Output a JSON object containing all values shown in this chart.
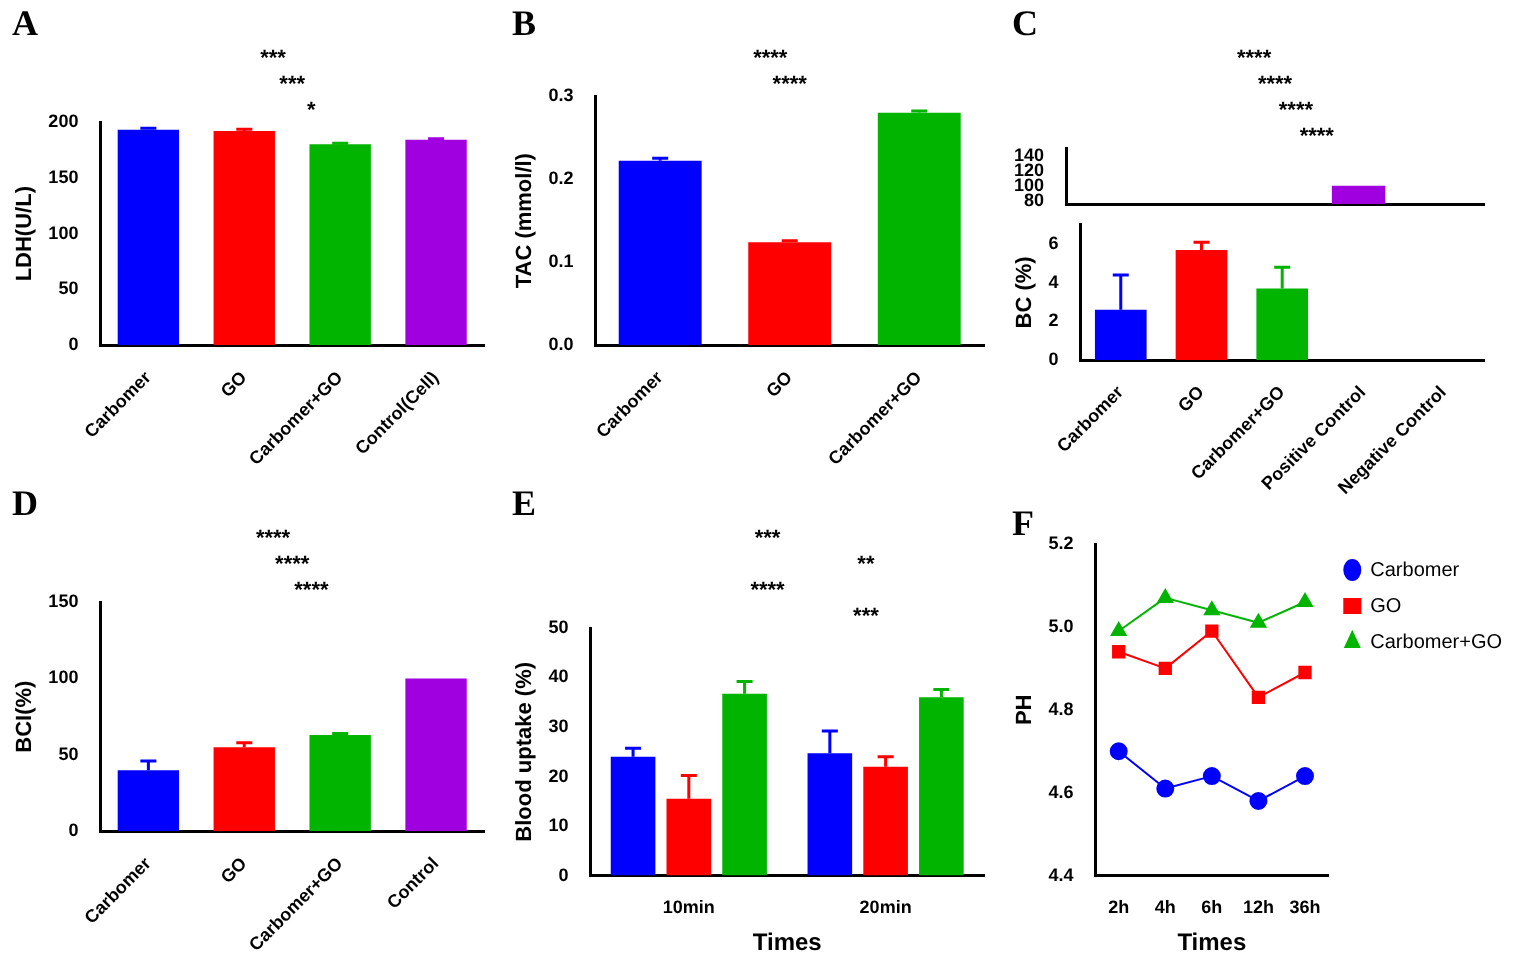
{
  "chart_data": [
    {
      "type": "bar",
      "title": "A",
      "ylabel": "LDH(U/L)",
      "categories": [
        "Carbomer",
        "GO",
        "Carbomer+GO",
        "Control(Cell)"
      ],
      "values": [
        193,
        192,
        180,
        184
      ],
      "errors": [
        1.5,
        1.5,
        1,
        1
      ],
      "colors": [
        "#0000ff",
        "#ff0000",
        "#00b400",
        "#a000e0"
      ],
      "ylim": [
        0,
        200
      ],
      "yticks": [
        0,
        50,
        100,
        150,
        200
      ],
      "annotations": [
        "***",
        "***",
        "*"
      ]
    },
    {
      "type": "bar",
      "title": "B",
      "ylabel": "TAC (mmol/l)",
      "categories": [
        "Carbomer",
        "GO",
        "Carbomer+GO"
      ],
      "values": [
        0.222,
        0.124,
        0.28
      ],
      "errors": [
        0.003,
        0.002,
        0.002
      ],
      "colors": [
        "#0000ff",
        "#ff0000",
        "#00b400"
      ],
      "ylim": [
        0,
        0.3
      ],
      "yticks": [
        {
          "value": 0,
          "label": "0.0"
        },
        0.1,
        0.2,
        0.3
      ],
      "annotations": [
        "****",
        "****"
      ]
    },
    {
      "type": "bar",
      "title": "C",
      "categories": [
        null,
        null,
        null,
        null,
        null
      ],
      "values": [
        null,
        null,
        null,
        100,
        null
      ],
      "colors": [
        "#0000ff",
        "#ff0000",
        "#00b400",
        "#a000e0",
        "#808080"
      ],
      "ylim": [
        76,
        150
      ],
      "yticks": [
        80,
        100,
        120,
        140
      ],
      "tick_labels": "y",
      "annotations": [
        "****",
        "****",
        "****",
        "****"
      ]
    },
    {
      "type": "bar",
      "ylabel": "BC (%)",
      "categories": [
        "Carbomer",
        "GO",
        "Carbomer+GO",
        "Positive Control",
        "Negative Control"
      ],
      "values": [
        2.6,
        5.7,
        3.7,
        null,
        0
      ],
      "errors": [
        1.8,
        0.4,
        1.1,
        null,
        null
      ],
      "colors": [
        "#0000ff",
        "#ff0000",
        "#00b400",
        "#a000e0",
        "#808080"
      ],
      "ylim": [
        0,
        7
      ],
      "yticks": [
        0,
        2,
        4,
        6
      ]
    },
    {
      "type": "bar",
      "title": "D",
      "ylabel": "BCI(%)",
      "categories": [
        "Carbomer",
        "GO",
        "Carbomer+GO",
        "Control"
      ],
      "values": [
        40,
        55,
        63,
        100
      ],
      "errors": [
        6,
        3,
        1,
        null
      ],
      "colors": [
        "#0000ff",
        "#ff0000",
        "#00b400",
        "#a000e0"
      ],
      "ylim": [
        0,
        150
      ],
      "yticks": [
        0,
        50,
        100,
        150
      ],
      "annotations": [
        "****",
        "****",
        "****"
      ]
    },
    {
      "type": "bar",
      "title": "E",
      "xlabel": "Times",
      "ylabel": "Blood uptake (%)",
      "categories": [
        "10min",
        "20min"
      ],
      "series": [
        {
          "color": "#0000ff",
          "values": [
            24,
            24.7
          ],
          "errors": [
            1.7,
            4.5
          ]
        },
        {
          "color": "#ff0000",
          "values": [
            15.5,
            22
          ],
          "errors": [
            4.7,
            2
          ]
        },
        {
          "color": "#00b400",
          "values": [
            36.7,
            36
          ],
          "errors": [
            2.5,
            1.6
          ]
        }
      ],
      "ylim": [
        0,
        50
      ],
      "yticks": [
        0,
        10,
        20,
        30,
        40,
        50
      ],
      "annotations": [
        "***",
        "**",
        "****",
        "***"
      ]
    },
    {
      "type": "line",
      "title": "F",
      "xlabel": "Times",
      "ylabel": "PH",
      "categories": [
        "2h",
        "4h",
        "6h",
        "12h",
        "36h"
      ],
      "series": [
        {
          "name": "Carbomer",
          "color": "#0000ff",
          "marker": "circle",
          "values": [
            4.7,
            4.61,
            4.64,
            4.58,
            4.64
          ]
        },
        {
          "name": "GO",
          "color": "#ff0000",
          "marker": "square",
          "values": [
            4.94,
            4.9,
            4.99,
            4.83,
            4.89
          ]
        },
        {
          "name": "Carbomer+GO",
          "color": "#00b400",
          "marker": "triangle",
          "values": [
            4.99,
            5.07,
            5.04,
            5.01,
            5.06
          ]
        }
      ],
      "ylim": [
        4.4,
        5.2
      ],
      "yticks": [
        4.4,
        4.6,
        4.8,
        {
          "value": 5,
          "label": "5.0"
        },
        5.2
      ],
      "legend": "right"
    }
  ]
}
